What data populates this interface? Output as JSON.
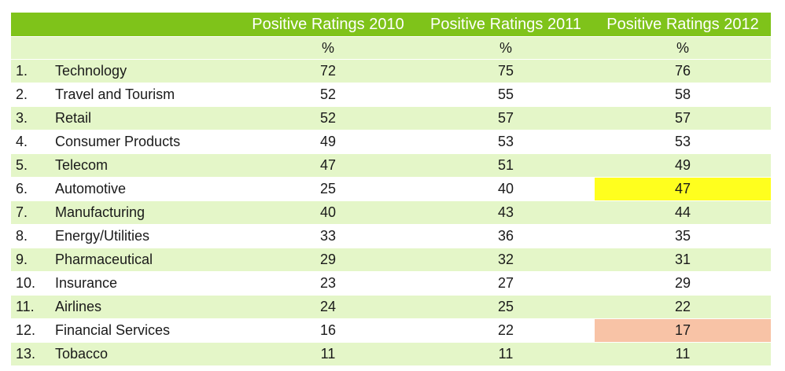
{
  "chart_data": {
    "type": "table",
    "columns": [
      "",
      "",
      "Positive Ratings 2010",
      "Positive Ratings 2011",
      "Positive Ratings 2012"
    ],
    "units": [
      "",
      "",
      "%",
      "%",
      "%"
    ],
    "rows": [
      {
        "rank": "1.",
        "name": "Technology",
        "values": [
          "72",
          "75",
          "76"
        ]
      },
      {
        "rank": "2.",
        "name": "Travel and Tourism",
        "values": [
          "52",
          "55",
          "58"
        ]
      },
      {
        "rank": "3.",
        "name": "Retail",
        "values": [
          "52",
          "57",
          "57"
        ]
      },
      {
        "rank": "4.",
        "name": "Consumer Products",
        "values": [
          "49",
          "53",
          "53"
        ]
      },
      {
        "rank": "5.",
        "name": "Telecom",
        "values": [
          "47",
          "51",
          "49"
        ]
      },
      {
        "rank": "6.",
        "name": "Automotive",
        "values": [
          "25",
          "40",
          "47"
        ]
      },
      {
        "rank": "7.",
        "name": "Manufacturing",
        "values": [
          "40",
          "43",
          "44"
        ]
      },
      {
        "rank": "8.",
        "name": "Energy/Utilities",
        "values": [
          "33",
          "36",
          "35"
        ]
      },
      {
        "rank": "9.",
        "name": "Pharmaceutical",
        "values": [
          "29",
          "32",
          "31"
        ]
      },
      {
        "rank": "10.",
        "name": "Insurance",
        "values": [
          "23",
          "27",
          "29"
        ]
      },
      {
        "rank": "11.",
        "name": "Airlines",
        "values": [
          "24",
          "25",
          "22"
        ]
      },
      {
        "rank": "12.",
        "name": "Financial Services",
        "values": [
          "16",
          "22",
          "17"
        ]
      },
      {
        "rank": "13.",
        "name": "Tobacco",
        "values": [
          "11",
          "11",
          "11"
        ]
      }
    ],
    "banded_rows": [
      1,
      3,
      5,
      7,
      9,
      11,
      13
    ],
    "highlights": [
      {
        "row": "6.",
        "column": "Positive Ratings 2012",
        "color": "#ffff1e"
      },
      {
        "row": "12.",
        "column": "Positive Ratings 2012",
        "color": "#f8c3a6"
      }
    ]
  },
  "colors": {
    "header_bg": "#7fc31a",
    "header_text": "#ffffff",
    "band_bg": "#e4f6c8"
  }
}
